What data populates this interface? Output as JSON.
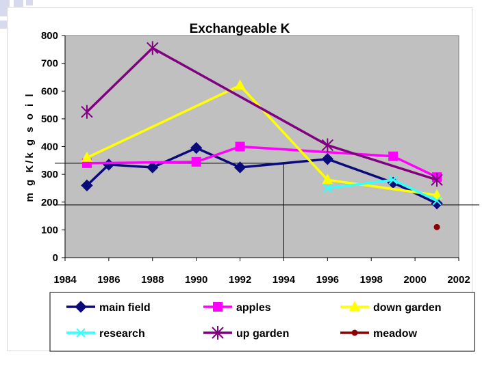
{
  "chart_data": {
    "type": "line",
    "title": "Exchangeable K",
    "xlabel": "",
    "ylabel": "m g K/k g  s o i l",
    "xlim": [
      1984,
      2002
    ],
    "ylim": [
      0,
      800
    ],
    "x_ticks": [
      "1984",
      "1986",
      "1988",
      "1990",
      "1992",
      "1994",
      "1996",
      "1998",
      "2000",
      "2002"
    ],
    "y_ticks": [
      "0",
      "100",
      "200",
      "300",
      "400",
      "500",
      "600",
      "700",
      "800"
    ],
    "legend_position": "bottom",
    "grid": false,
    "series": [
      {
        "name": "main field",
        "color": "#0a0a7a",
        "marker": "diamond",
        "points": [
          [
            1985,
            260
          ],
          [
            1986,
            335
          ],
          [
            1988,
            325
          ],
          [
            1990,
            395
          ],
          [
            1992,
            325
          ],
          [
            1996,
            355
          ],
          [
            1999,
            270
          ],
          [
            2001,
            195
          ]
        ]
      },
      {
        "name": "apples",
        "color": "#ff00ff",
        "marker": "square",
        "points": [
          [
            1985,
            340
          ],
          [
            1990,
            345
          ],
          [
            1992,
            400
          ],
          [
            1999,
            365
          ],
          [
            2001,
            290
          ]
        ]
      },
      {
        "name": "down garden",
        "color": "#ffff00",
        "marker": "triangle",
        "points": [
          [
            1985,
            360
          ],
          [
            1992,
            620
          ],
          [
            1996,
            280
          ],
          [
            2001,
            225
          ]
        ]
      },
      {
        "name": "research",
        "color": "#33ffff",
        "marker": "x",
        "points": [
          [
            1996,
            250
          ],
          [
            1999,
            280
          ],
          [
            2001,
            205
          ]
        ]
      },
      {
        "name": "up garden",
        "color": "#800080",
        "marker": "star",
        "points": [
          [
            1985,
            525
          ],
          [
            1988,
            755
          ],
          [
            1996,
            405
          ],
          [
            2001,
            280
          ]
        ]
      },
      {
        "name": "meadow",
        "color": "#8b0000",
        "marker": "dot",
        "points": [
          [
            2001,
            110
          ]
        ]
      }
    ]
  }
}
